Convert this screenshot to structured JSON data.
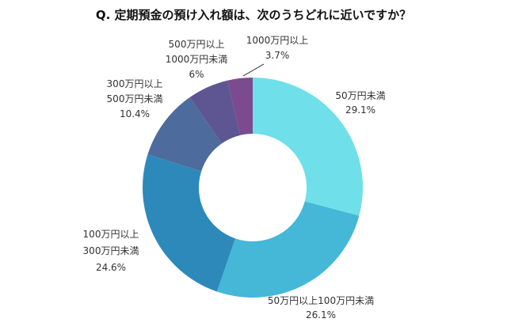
{
  "chart_data": {
    "type": "pie",
    "donut": true,
    "title": "Q. 定期預金の預け入れ額は、次のうちどれに近いですか？",
    "slices": [
      {
        "label": [
          "50万円未満"
        ],
        "value": 29.1,
        "value_label": "29.1%",
        "color": "#6FE0E9"
      },
      {
        "label": [
          "50万円以上100万円未満"
        ],
        "value": 26.1,
        "value_label": "26.1%",
        "color": "#45B7D7"
      },
      {
        "label": [
          "100万円以上",
          "300万円未満"
        ],
        "value": 24.6,
        "value_label": "24.6%",
        "color": "#2E89BB"
      },
      {
        "label": [
          "300万円以上",
          "500万円未満"
        ],
        "value": 10.4,
        "value_label": "10.4%",
        "color": "#4D6B9C"
      },
      {
        "label": [
          "500万円以上",
          "1000万円未満"
        ],
        "value": 6,
        "value_label": "6%",
        "color": "#5D5692"
      },
      {
        "label": [
          "1000万円以上"
        ],
        "value": 3.7,
        "value_label": "3.7%",
        "color": "#7B4A8F"
      }
    ],
    "start_angle": "12 o'clock",
    "direction": "clockwise",
    "legend": "none"
  }
}
